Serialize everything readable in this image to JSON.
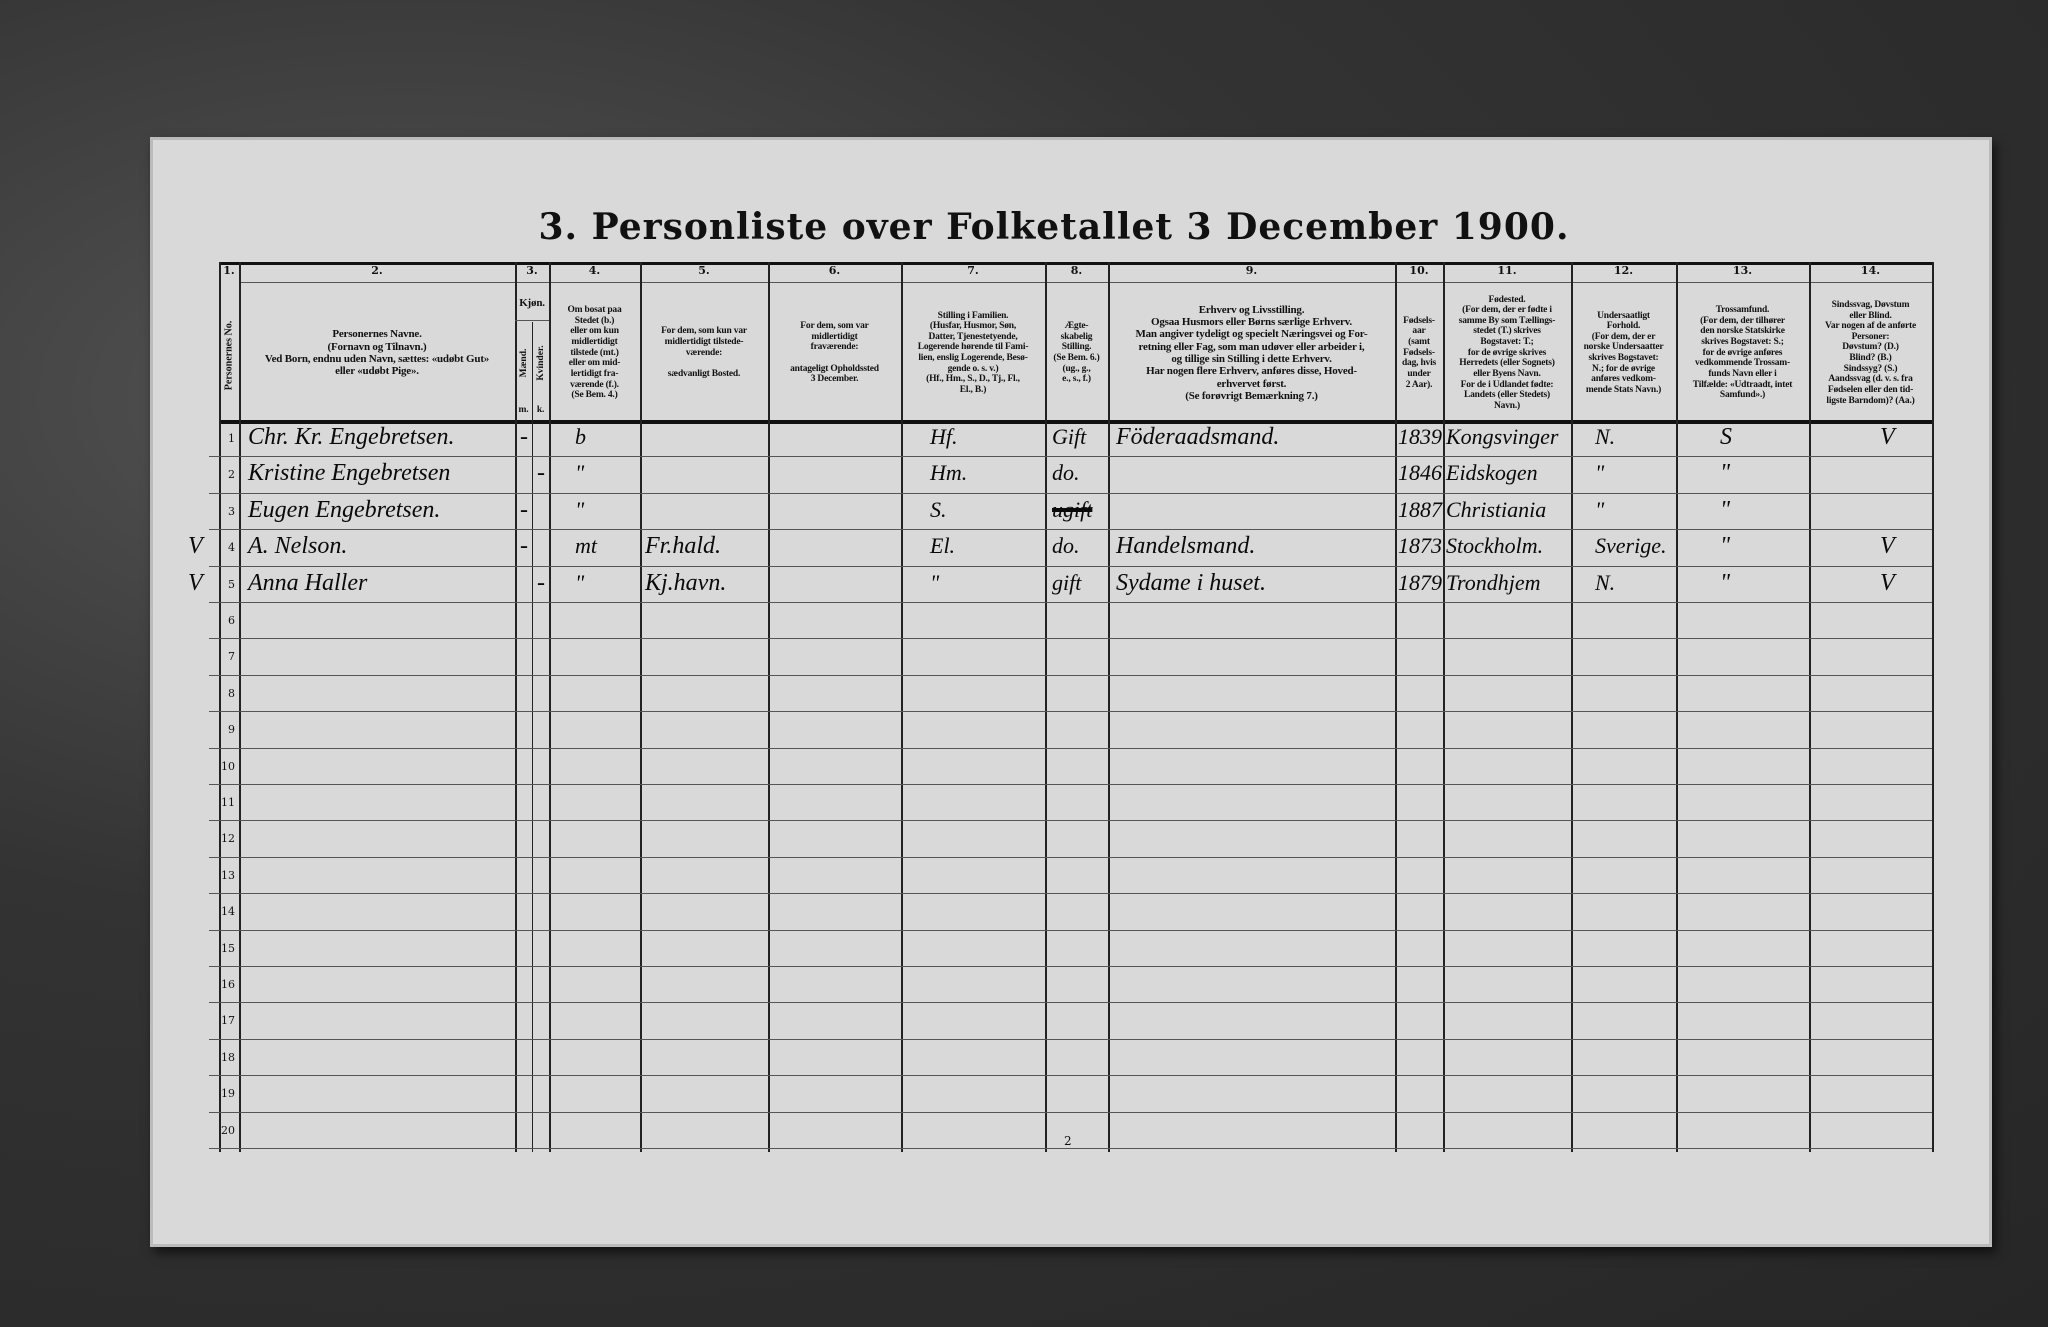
{
  "title": "3. Personliste over Folketallet 3 December 1900.",
  "page_number": "2",
  "columns": [
    {
      "num": "1.",
      "header": "Personernes No."
    },
    {
      "num": "2.",
      "header": "Personernes Navne.\n(Fornavn og Tilnavn.)\nVed Born, endnu uden Navn, sættes: «udøbt Gut»\neller «udøbt Pige»."
    },
    {
      "num": "3.",
      "header": "Kjøn.",
      "sub": [
        "Mænd.",
        "Kvinder."
      ],
      "subletters": [
        "m.",
        "k."
      ]
    },
    {
      "num": "4.",
      "header": "Om bosat paa\nStedet (b.)\neller om kun\nmidlertidigt\ntilstede (mt.)\neller om mid-\nlertidigt fra-\nværende (f.).\n(Se Bem. 4.)"
    },
    {
      "num": "5.",
      "header": "For dem, som kun var\nmidlertidigt tilstede-\nværende:\n\nsædvanligt Bosted."
    },
    {
      "num": "6.",
      "header": "For dem, som var\nmidlertidigt\nfraværende:\n\nantageligt Opholdssted\n3 December."
    },
    {
      "num": "7.",
      "header": "Stilling i Familien.\n(Husfar, Husmor, Søn,\nDatter, Tjenestetyende,\nLogerende hørende til Fami-\nlien, enslig Logerende, Besø-\ngende o. s. v.)\n(Hf., Hm., S., D., Tj., Fl.,\nEl., B.)"
    },
    {
      "num": "8.",
      "header": "Ægte-\nskabelig\nStilling.\n(Se Bem. 6.)\n(ug., g.,\ne., s., f.)"
    },
    {
      "num": "9.",
      "header": "Erhverv og Livsstilling.\nOgsaa Husmors eller Børns særlige Erhverv.\nMan angiver tydeligt og specielt Næringsvei og For-\nretning eller Fag, som man udøver eller arbeider i,\nog tillige sin Stilling i dette Erhverv.\nHar nogen flere Erhverv, anføres disse, Hoved-\nerhvervet først.\n(Se forøvrigt Bemærkning 7.)"
    },
    {
      "num": "10.",
      "header": "Fødsels-\naar\n(samt\nFødsels-\ndag, hvis\nunder\n2 Aar)."
    },
    {
      "num": "11.",
      "header": "Fødested.\n(For dem, der er fødte i\nsamme By som Tællings-\nstedet (T.) skrives\nBogstavet: T.;\nfor de øvrige skrives\nHerredets (eller Sognets)\neller Byens Navn.\nFor de i Udlandet fødte:\nLandets (eller Stedets)\nNavn.)"
    },
    {
      "num": "12.",
      "header": "Undersaatligt\nForhold.\n(For dem, der er\nnorske Undersaatter\nskrives Bogstavet:\nN.; for de øvrige\nanføres vedkom-\nmende Stats Navn.)"
    },
    {
      "num": "13.",
      "header": "Trossamfund.\n(For dem, der tilhører\nden norske Statskirke\nskrives Bogstavet: S.;\nfor de øvrige anføres\nvedkommende Trossam-\nfunds Navn eller i\nTilfælde: «Udtraadt, intet\nSamfund».)"
    },
    {
      "num": "14.",
      "header": "Sindssvag, Døvstum\neller Blind.\nVar nogen af de anførte\nPersoner:\nDøvstum? (D.)\nBlind? (B.)\nSindssyg? (S.)\nAandssvag (d. v. s. fra\nFødselen eller den tid-\nligste Barndom)? (Aa.)"
    }
  ],
  "row_numbers": [
    "1",
    "2",
    "3",
    "4",
    "5",
    "6",
    "7",
    "8",
    "9",
    "10",
    "11",
    "12",
    "13",
    "14",
    "15",
    "16",
    "17",
    "18",
    "19",
    "20"
  ],
  "entries": [
    {
      "margin": "",
      "name": "Chr. Kr. Engebretsen.",
      "m": "-",
      "k": "",
      "bosat": "b",
      "bosted": "",
      "opholdssted": "",
      "stilling": "Hf.",
      "aegteskab": "Gift",
      "erhverv": "Föderaadsmand.",
      "aar": "1839",
      "fodested": "Kongsvinger",
      "undersaat": "N.",
      "tro": "S",
      "sindssvag": "V"
    },
    {
      "margin": "",
      "name": "Kristine Engebretsen",
      "m": "",
      "k": "-",
      "bosat": "\"",
      "bosted": "",
      "opholdssted": "",
      "stilling": "Hm.",
      "aegteskab": "do.",
      "erhverv": "",
      "aar": "1846",
      "fodested": "Eidskogen",
      "undersaat": "\"",
      "tro": "\"",
      "sindssvag": ""
    },
    {
      "margin": "",
      "name": "Eugen Engebretsen.",
      "m": "-",
      "k": "",
      "bosat": "\"",
      "bosted": "",
      "opholdssted": "",
      "stilling": "S.",
      "aegteskab": "ugift",
      "aegteskab_struck": true,
      "erhverv": "",
      "aar": "1887",
      "fodested": "Christiania",
      "undersaat": "\"",
      "tro": "\"",
      "sindssvag": ""
    },
    {
      "margin": "V",
      "name": "A. Nelson.",
      "m": "-",
      "k": "",
      "bosat": "mt",
      "bosted": "Fr.hald.",
      "opholdssted": "",
      "stilling": "El.",
      "aegteskab": "do.",
      "erhverv": "Handelsmand.",
      "aar": "1873",
      "fodested": "Stockholm.",
      "undersaat": "Sverige.",
      "tro": "\"",
      "sindssvag": "V"
    },
    {
      "margin": "V",
      "name": "Anna Haller",
      "m": "",
      "k": "-",
      "bosat": "\"",
      "bosted": "Kj.havn.",
      "opholdssted": "",
      "stilling": "\"",
      "aegteskab": "gift",
      "erhverv": "Sydame i huset.",
      "aar": "1879",
      "fodested": "Trondhjem",
      "undersaat": "N.",
      "tro": "\"",
      "sindssvag": "V"
    }
  ]
}
